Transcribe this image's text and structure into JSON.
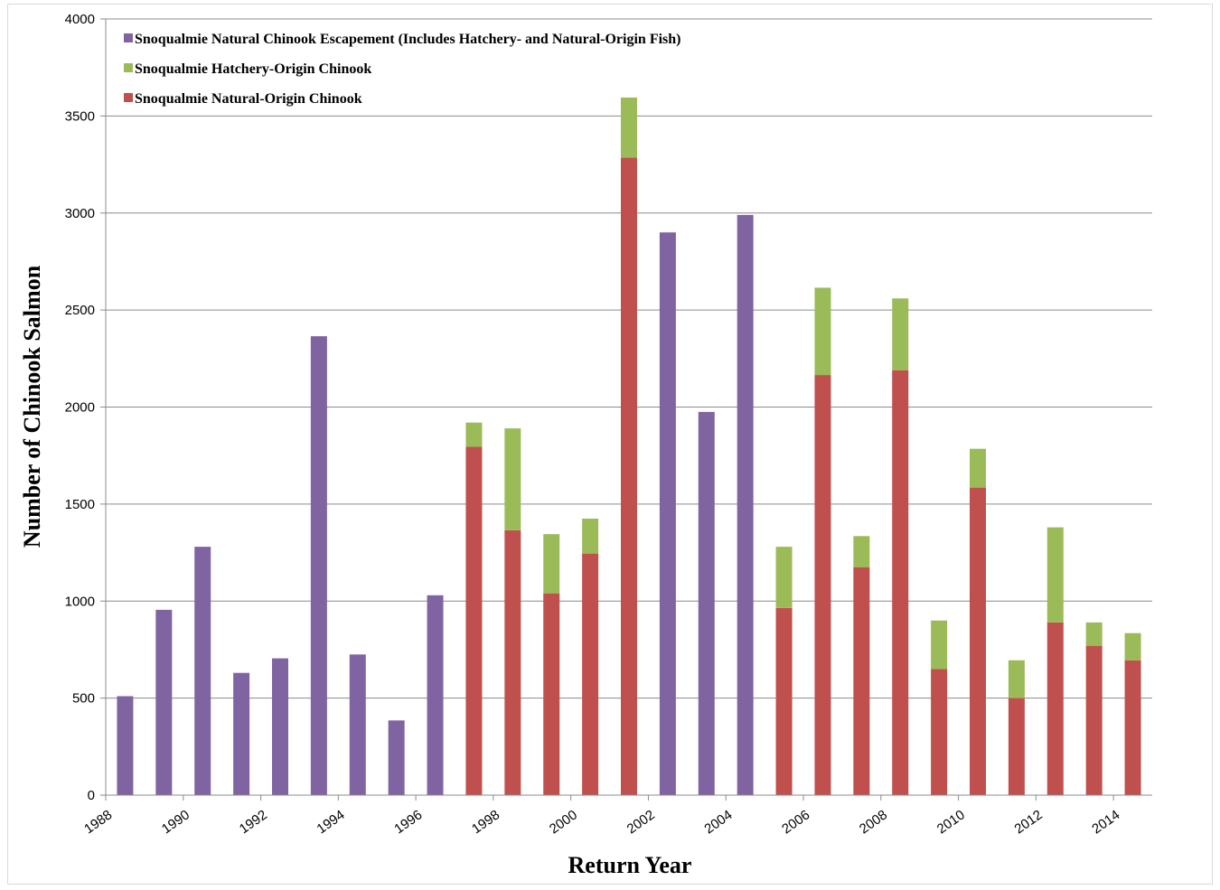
{
  "chart_data": {
    "type": "bar",
    "stacked": true,
    "xlabel": "Return Year",
    "ylabel": "Number of Chinook Salmon",
    "ylim": [
      0,
      4000
    ],
    "yticks": [
      0,
      500,
      1000,
      1500,
      2000,
      2500,
      3000,
      3500,
      4000
    ],
    "categories": [
      "1988",
      "1989",
      "1990",
      "1991",
      "1992",
      "1993",
      "1994",
      "1995",
      "1996",
      "1997",
      "1998",
      "1999",
      "2000",
      "2001",
      "2002",
      "2003",
      "2004",
      "2005",
      "2006",
      "2007",
      "2008",
      "2009",
      "2010",
      "2011",
      "2012",
      "2013",
      "2014"
    ],
    "xtick_labels": [
      "1988",
      "",
      "1990",
      "",
      "1992",
      "",
      "1994",
      "",
      "1996",
      "",
      "1998",
      "",
      "2000",
      "",
      "2002",
      "",
      "2004",
      "",
      "2006",
      "",
      "2008",
      "",
      "2010",
      "",
      "2012",
      "",
      "2014"
    ],
    "grid": true,
    "legend_position": "top-left",
    "series": [
      {
        "name": "Snoqualmie Natural Chinook Escapement (Includes Hatchery- and Natural-Origin Fish)",
        "color": "#8064a2",
        "values": [
          510,
          955,
          1280,
          630,
          705,
          2365,
          725,
          385,
          1030,
          0,
          0,
          0,
          0,
          0,
          2900,
          1975,
          2990,
          0,
          0,
          0,
          0,
          0,
          0,
          0,
          0,
          0,
          0
        ]
      },
      {
        "name": "Snoqualmie Natural-Origin Chinook",
        "color": "#c0504d",
        "values": [
          0,
          0,
          0,
          0,
          0,
          0,
          0,
          0,
          0,
          1795,
          1365,
          1040,
          1245,
          3285,
          0,
          0,
          0,
          965,
          2165,
          1175,
          2190,
          650,
          1585,
          500,
          890,
          770,
          695
        ]
      },
      {
        "name": "Snoqualmie Hatchery-Origin Chinook",
        "color": "#9bbb59",
        "values": [
          0,
          0,
          0,
          0,
          0,
          0,
          0,
          0,
          0,
          125,
          525,
          305,
          180,
          310,
          0,
          0,
          0,
          315,
          450,
          160,
          370,
          250,
          200,
          195,
          490,
          120,
          140
        ]
      }
    ],
    "legend": [
      {
        "label": "Snoqualmie Natural Chinook Escapement (Includes Hatchery- and Natural-Origin Fish)",
        "color": "#8064a2"
      },
      {
        "label": "Snoqualmie Hatchery-Origin Chinook",
        "color": "#9bbb59"
      },
      {
        "label": "Snoqualmie Natural-Origin Chinook",
        "color": "#c0504d"
      }
    ]
  }
}
